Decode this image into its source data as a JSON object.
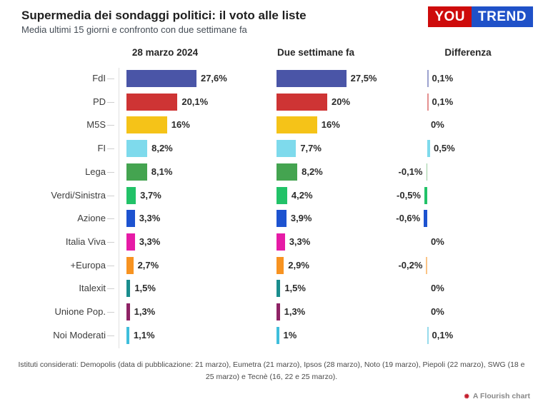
{
  "header": {
    "title": "Supermedia dei sondaggi politici: il voto alle liste",
    "subtitle": "Media ultimi 15 giorni e confronto con due settimane fa",
    "logo": {
      "part1": "YOU",
      "part2": "TREND",
      "part1_bg": "#CE0B0B",
      "part2_bg": "#1F51C8",
      "text_color": "#ffffff"
    }
  },
  "chart_data": {
    "type": "bar",
    "title": "Supermedia dei sondaggi politici: il voto alle liste",
    "subtitle": "Media ultimi 15 giorni e confronto con due settimane fa",
    "column_headers": [
      "28 marzo 2024",
      "Due settimane fa",
      "Differenza"
    ],
    "value_suffix": "%",
    "legend_position": "none",
    "grid": "off",
    "parties": [
      {
        "name": "FdI",
        "color": "#4A55A7",
        "current": 27.6,
        "previous": 27.5,
        "diff": 0.1,
        "current_label": "27,6%",
        "previous_label": "27,5%",
        "diff_label": "0,1%"
      },
      {
        "name": "PD",
        "color": "#CE3434",
        "current": 20.1,
        "previous": 20.0,
        "diff": 0.1,
        "current_label": "20,1%",
        "previous_label": "20%",
        "diff_label": "0,1%"
      },
      {
        "name": "M5S",
        "color": "#F5C318",
        "current": 16.0,
        "previous": 16.0,
        "diff": 0.0,
        "current_label": "16%",
        "previous_label": "16%",
        "diff_label": "0%"
      },
      {
        "name": "FI",
        "color": "#7EDAEC",
        "current": 8.2,
        "previous": 7.7,
        "diff": 0.5,
        "current_label": "8,2%",
        "previous_label": "7,7%",
        "diff_label": "0,5%"
      },
      {
        "name": "Lega",
        "color": "#44A450",
        "current": 8.1,
        "previous": 8.2,
        "diff": -0.1,
        "current_label": "8,1%",
        "previous_label": "8,2%",
        "diff_label": "-0,1%"
      },
      {
        "name": "Verdi/Sinistra",
        "color": "#22C268",
        "current": 3.7,
        "previous": 4.2,
        "diff": -0.5,
        "current_label": "3,7%",
        "previous_label": "4,2%",
        "diff_label": "-0,5%"
      },
      {
        "name": "Azione",
        "color": "#1D53D0",
        "current": 3.3,
        "previous": 3.9,
        "diff": -0.6,
        "current_label": "3,3%",
        "previous_label": "3,9%",
        "diff_label": "-0,6%"
      },
      {
        "name": "Italia Viva",
        "color": "#E61BA6",
        "current": 3.3,
        "previous": 3.3,
        "diff": 0.0,
        "current_label": "3,3%",
        "previous_label": "3,3%",
        "diff_label": "0%"
      },
      {
        "name": "+Europa",
        "color": "#F79321",
        "current": 2.7,
        "previous": 2.9,
        "diff": -0.2,
        "current_label": "2,7%",
        "previous_label": "2,9%",
        "diff_label": "-0,2%"
      },
      {
        "name": "Italexit",
        "color": "#1A8D8D",
        "current": 1.5,
        "previous": 1.5,
        "diff": 0.0,
        "current_label": "1,5%",
        "previous_label": "1,5%",
        "diff_label": "0%"
      },
      {
        "name": "Unione Pop.",
        "color": "#8E2365",
        "current": 1.3,
        "previous": 1.3,
        "diff": 0.0,
        "current_label": "1,3%",
        "previous_label": "1,3%",
        "diff_label": "0%"
      },
      {
        "name": "Noi Moderati",
        "color": "#3FBEDC",
        "current": 1.1,
        "previous": 1.0,
        "diff": 0.1,
        "current_label": "1,1%",
        "previous_label": "1%",
        "diff_label": "0,1%"
      }
    ]
  },
  "footer": {
    "footnote": "Istituti considerati: Demopolis (data di pubblicazione: 21 marzo), Eumetra (21 marzo), Ipsos (28 marzo), Noto (19 marzo), Piepoli (22 marzo), SWG (18 e 25 marzo) e Tecnè (16, 22 e 25 marzo)."
  },
  "attribution": {
    "label": "A Flourish chart"
  }
}
